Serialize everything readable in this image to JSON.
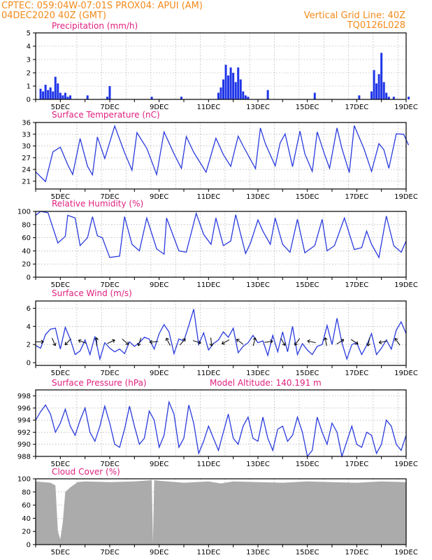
{
  "header": {
    "line1_left": "CPTEC:   059:04W-07:01S   PROX04: APUI (AM)",
    "line2_left": "04DEC2020 40Z (GMT)",
    "right1": "Vertical Grid Line: 40Z",
    "right2": "TQ0126L028"
  },
  "colors": {
    "line": "#2a3bdc",
    "bar": "#1f35e8",
    "cloud": "#ababab",
    "title": "#e0207f",
    "header": "#f28a1a"
  },
  "date_ticks": [
    "5DEC",
    "7DEC",
    "9DEC",
    "11DEC",
    "13DEC",
    "15DEC",
    "17DEC",
    "19DEC"
  ],
  "chart_data": [
    {
      "type": "bar",
      "title": "Precipitation (mm/h)",
      "ylim": [
        0,
        5
      ],
      "yticks": [
        "0",
        "1",
        "2",
        "3",
        "4",
        "5"
      ],
      "x_unit": "days since 04DEC2020 00Z",
      "x": [
        0.2,
        0.3,
        0.4,
        0.5,
        0.6,
        0.7,
        0.8,
        0.9,
        1.0,
        1.1,
        1.2,
        1.3,
        1.4,
        2.1,
        2.9,
        3.0,
        4.7,
        5.9,
        7.4,
        7.5,
        7.6,
        7.7,
        7.8,
        7.9,
        8.0,
        8.1,
        8.2,
        8.3,
        8.4,
        8.5,
        8.6,
        9.4,
        11.3,
        13.1,
        13.6,
        13.7,
        13.8,
        13.9,
        14.0,
        14.1,
        14.2,
        14.3,
        14.5,
        15.1
      ],
      "values": [
        0.8,
        0.6,
        1.1,
        0.7,
        0.9,
        0.6,
        1.7,
        1.2,
        0.5,
        0.3,
        0.5,
        0.2,
        0.3,
        0.3,
        0.2,
        1.0,
        0.2,
        0.2,
        0.5,
        0.9,
        1.5,
        2.6,
        1.8,
        2.4,
        2.0,
        1.3,
        2.4,
        1.5,
        0.6,
        0.3,
        0.2,
        0.7,
        0.5,
        0.3,
        0.6,
        2.2,
        1.2,
        1.9,
        3.5,
        1.3,
        0.5,
        0.2,
        0.2,
        0.2
      ]
    },
    {
      "type": "line",
      "title": "Surface Temperature (nC)",
      "ylim": [
        19,
        36
      ],
      "yticks": [
        "21",
        "24",
        "27",
        "30",
        "33",
        "36"
      ],
      "x_unit": "days since 04DEC2020 00Z",
      "x": [
        0.0,
        0.3,
        0.4,
        0.7,
        1.0,
        1.3,
        1.5,
        1.8,
        2.1,
        2.3,
        2.5,
        2.8,
        3.2,
        3.6,
        3.9,
        4.1,
        4.5,
        4.9,
        5.2,
        5.6,
        5.9,
        6.1,
        6.4,
        6.9,
        7.3,
        7.6,
        7.9,
        8.2,
        8.4,
        8.9,
        9.1,
        9.3,
        9.7,
        9.9,
        10.1,
        10.4,
        10.7,
        10.9,
        11.2,
        11.4,
        11.7,
        11.9,
        12.2,
        12.4,
        12.7,
        12.9,
        13.3,
        13.6,
        13.9,
        14.1,
        14.3,
        14.6,
        14.9,
        15.1
      ],
      "values": [
        23.4,
        21.5,
        20.9,
        28.5,
        29.7,
        25.2,
        22.7,
        31.9,
        24.8,
        22.6,
        32.3,
        26.8,
        35.1,
        28.3,
        23.8,
        33.4,
        29.4,
        22.7,
        33.6,
        28.0,
        24.3,
        32.4,
        28.4,
        23.3,
        32.0,
        27.8,
        24.8,
        32.5,
        30.0,
        24.2,
        34.6,
        30.6,
        24.9,
        30.8,
        33.1,
        24.7,
        33.8,
        28.0,
        23.5,
        33.6,
        27.8,
        24.3,
        34.6,
        29.4,
        23.2,
        35.2,
        29.2,
        23.5,
        30.6,
        29.0,
        24.3,
        33.1,
        33.0,
        30.2
      ]
    },
    {
      "type": "line",
      "title": "Relative Humidity (%)",
      "ylim": [
        0,
        100
      ],
      "yticks": [
        "0",
        "20",
        "40",
        "60",
        "80",
        "100"
      ],
      "x_unit": "days since 04DEC2020 00Z",
      "x": [
        0.0,
        0.2,
        0.5,
        0.9,
        1.2,
        1.3,
        1.6,
        1.8,
        2.1,
        2.3,
        2.5,
        2.7,
        3.0,
        3.4,
        3.6,
        3.9,
        4.2,
        4.5,
        4.9,
        5.2,
        5.3,
        5.8,
        6.1,
        6.5,
        6.8,
        7.1,
        7.3,
        7.6,
        7.9,
        8.1,
        8.5,
        8.7,
        9.0,
        9.2,
        9.5,
        9.7,
        10.0,
        10.3,
        10.6,
        10.9,
        11.3,
        11.6,
        11.8,
        12.1,
        12.5,
        12.9,
        13.2,
        13.4,
        13.6,
        13.9,
        14.2,
        14.5,
        14.8,
        15.0
      ],
      "values": [
        94,
        100,
        98,
        52,
        62,
        94,
        90,
        48,
        60,
        92,
        63,
        60,
        30,
        32,
        92,
        50,
        40,
        90,
        43,
        35,
        90,
        40,
        38,
        97,
        65,
        50,
        90,
        48,
        55,
        95,
        36,
        52,
        87,
        70,
        50,
        90,
        50,
        38,
        88,
        37,
        48,
        88,
        40,
        48,
        90,
        42,
        45,
        70,
        50,
        30,
        93,
        48,
        38,
        55
      ]
    },
    {
      "type": "line",
      "title": "Surface Wind (m/s)",
      "ylim": [
        -0.3,
        6.8
      ],
      "yticks": [
        "0",
        "2",
        "4",
        "6"
      ],
      "x_unit": "days since 04DEC2020 00Z",
      "x": [
        0.0,
        0.2,
        0.4,
        0.6,
        0.8,
        1.0,
        1.2,
        1.4,
        1.6,
        1.8,
        2.0,
        2.2,
        2.4,
        2.6,
        2.8,
        3.0,
        3.2,
        3.4,
        3.6,
        3.8,
        4.0,
        4.2,
        4.4,
        4.6,
        4.8,
        5.0,
        5.2,
        5.4,
        5.6,
        5.8,
        6.0,
        6.2,
        6.4,
        6.6,
        6.8,
        7.0,
        7.2,
        7.4,
        7.6,
        7.8,
        8.0,
        8.2,
        8.4,
        8.6,
        8.8,
        9.0,
        9.2,
        9.4,
        9.6,
        9.8,
        10.0,
        10.2,
        10.4,
        10.6,
        10.8,
        11.0,
        11.2,
        11.4,
        11.6,
        11.8,
        12.0,
        12.2,
        12.4,
        12.6,
        12.8,
        13.0,
        13.2,
        13.4,
        13.6,
        13.8,
        14.0,
        14.2,
        14.4,
        14.6,
        14.8,
        15.0
      ],
      "values": [
        1.9,
        1.6,
        3.1,
        3.7,
        3.8,
        1.5,
        3.9,
        2.6,
        0.9,
        1.3,
        2.5,
        0.9,
        2.9,
        0.4,
        2.2,
        1.6,
        1.2,
        1.5,
        1.0,
        2.3,
        1.8,
        2.2,
        2.8,
        2.6,
        1.5,
        3.2,
        4.2,
        3.4,
        1.0,
        2.6,
        2.4,
        4.1,
        5.9,
        2.0,
        3.3,
        1.4,
        2.1,
        2.5,
        3.4,
        2.8,
        3.8,
        1.1,
        1.8,
        2.2,
        3.0,
        2.2,
        2.4,
        0.8,
        3.0,
        1.2,
        3.4,
        1.2,
        4.0,
        0.9,
        2.1,
        1.4,
        0.9,
        1.8,
        2.0,
        4.1,
        2.0,
        4.9,
        2.2,
        0.4,
        2.0,
        2.2,
        0.9,
        1.9,
        3.2,
        0.9,
        1.6,
        2.5,
        1.5,
        3.6,
        4.5,
        3.2
      ]
    },
    {
      "type": "line",
      "title": "Surface Pressure (hPa)",
      "annotation": "Model Altitude: 140.191 m",
      "ylim": [
        988,
        999
      ],
      "yticks": [
        "988",
        "990",
        "992",
        "994",
        "996",
        "998"
      ],
      "x_unit": "days since 04DEC2020 00Z",
      "x": [
        0.0,
        0.2,
        0.4,
        0.6,
        0.8,
        1.0,
        1.2,
        1.4,
        1.6,
        1.8,
        2.0,
        2.2,
        2.4,
        2.6,
        2.8,
        3.0,
        3.2,
        3.4,
        3.6,
        3.8,
        4.0,
        4.2,
        4.4,
        4.6,
        4.8,
        5.0,
        5.2,
        5.4,
        5.6,
        5.8,
        6.0,
        6.2,
        6.4,
        6.6,
        6.8,
        7.0,
        7.2,
        7.4,
        7.6,
        7.8,
        8.0,
        8.2,
        8.4,
        8.6,
        8.8,
        9.0,
        9.2,
        9.4,
        9.6,
        9.8,
        10.0,
        10.2,
        10.4,
        10.6,
        10.8,
        11.0,
        11.2,
        11.4,
        11.6,
        11.8,
        12.0,
        12.2,
        12.4,
        12.6,
        12.8,
        13.0,
        13.2,
        13.4,
        13.6,
        13.8,
        14.0,
        14.2,
        14.4,
        14.6,
        14.8,
        15.0
      ],
      "values": [
        994.0,
        995.4,
        996.5,
        995.0,
        992.0,
        993.5,
        995.8,
        993.0,
        991.5,
        994.0,
        996.0,
        992.0,
        990.5,
        993.0,
        996.3,
        993.5,
        990.0,
        989.5,
        992.5,
        996.3,
        993.0,
        990.0,
        991.0,
        995.5,
        994.0,
        989.5,
        991.5,
        997.0,
        995.0,
        989.5,
        991.0,
        996.5,
        993.5,
        988.5,
        990.5,
        993.0,
        991.0,
        989.0,
        992.0,
        995.0,
        991.0,
        990.0,
        993.0,
        994.5,
        991.0,
        990.5,
        994.5,
        991.0,
        989.0,
        992.5,
        993.0,
        990.5,
        991.5,
        994.5,
        992.0,
        988.0,
        989.0,
        994.5,
        992.0,
        990.0,
        993.5,
        992.0,
        988.0,
        990.5,
        993.0,
        990.0,
        989.5,
        992.0,
        991.5,
        988.5,
        990.0,
        994.0,
        993.0,
        990.0,
        989.0,
        991.5
      ]
    },
    {
      "type": "area",
      "title": "Cloud Cover (%)",
      "ylim": [
        0,
        100
      ],
      "yticks": [
        "0",
        "20",
        "40",
        "60",
        "80",
        "100"
      ],
      "x_unit": "days since 04DEC2020 00Z",
      "x": [
        0.0,
        0.3,
        0.6,
        0.8,
        0.9,
        1.0,
        1.1,
        1.2,
        1.4,
        1.7,
        2.0,
        3.0,
        4.0,
        4.7,
        4.75,
        4.8,
        5.0,
        6.0,
        7.0,
        7.5,
        8.0,
        9.0,
        10.0,
        11.0,
        12.0,
        13.0,
        14.0,
        15.0
      ],
      "values": [
        96,
        95,
        94,
        90,
        20,
        8,
        35,
        80,
        87,
        95,
        96,
        95,
        96,
        98,
        3,
        98,
        97,
        94,
        96,
        93,
        96,
        95,
        94,
        96,
        95,
        94,
        96,
        95
      ]
    }
  ]
}
